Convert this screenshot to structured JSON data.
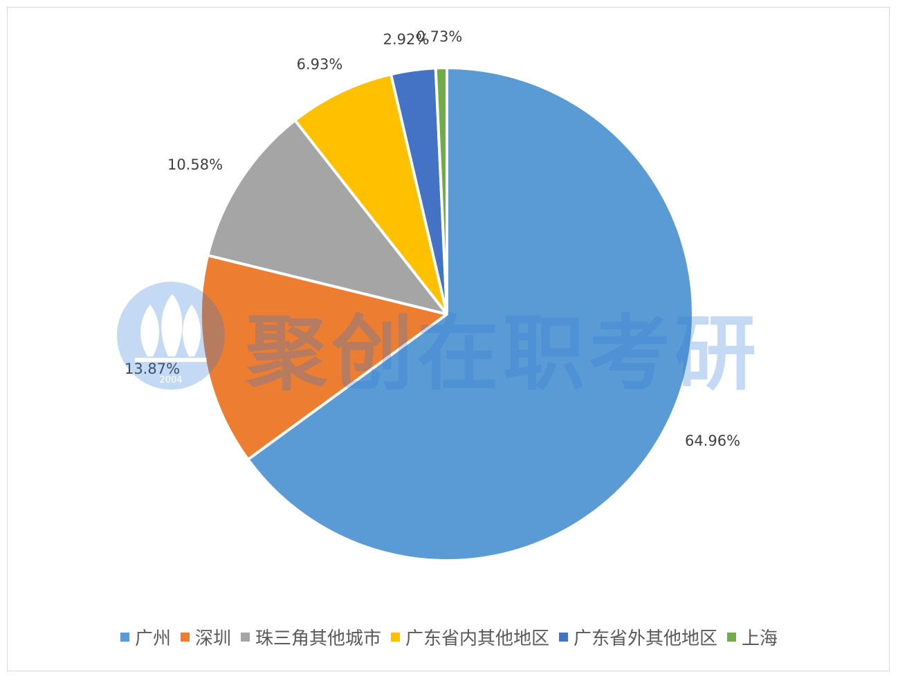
{
  "chart_data": {
    "type": "pie",
    "categories": [
      "广州",
      "深圳",
      "珠三角其他城市",
      "广东省内其他地区",
      "广东省外其他地区",
      "上海"
    ],
    "values": [
      64.96,
      13.87,
      10.58,
      6.93,
      2.92,
      0.73
    ],
    "data_labels": [
      "64.96%",
      "13.87%",
      "10.58%",
      "6.93%",
      "2.92%",
      "0.73%"
    ],
    "colors": [
      "#5b9bd5",
      "#ed7d31",
      "#a5a5a5",
      "#ffc000",
      "#4472c4",
      "#70ad47"
    ],
    "start_angle": "12 o'clock",
    "direction": "clockwise",
    "legend_position": "bottom"
  },
  "watermark": {
    "text": "聚创在职考研",
    "year": "2004"
  }
}
